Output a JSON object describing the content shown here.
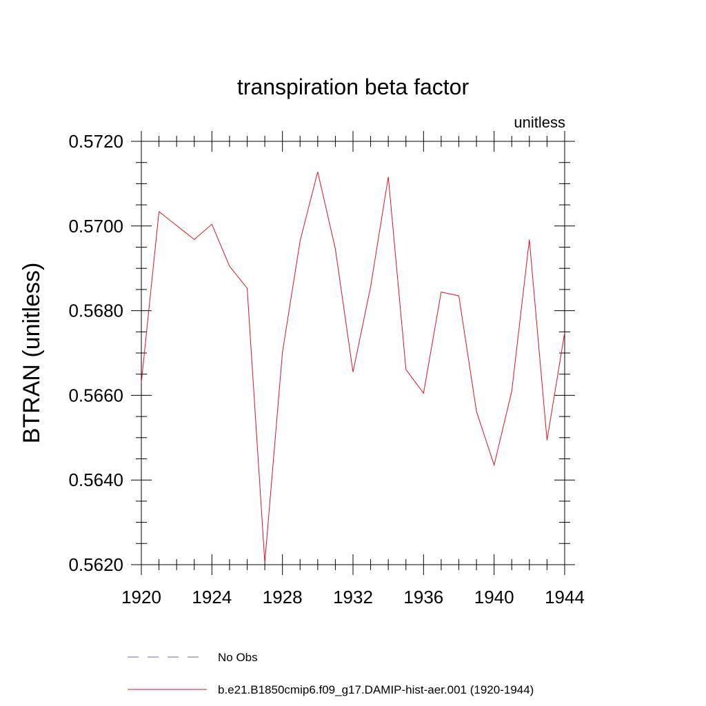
{
  "chart_data": {
    "type": "line",
    "title": "transpiration beta factor",
    "units_label": "unitless",
    "ylabel": "BTRAN  (unitless)",
    "xlabel": "",
    "xlim": [
      1920,
      1944
    ],
    "ylim": [
      0.562,
      0.572
    ],
    "x_ticks": [
      1920,
      1924,
      1928,
      1932,
      1936,
      1940,
      1944
    ],
    "x_tick_labels": [
      "1920",
      "1924",
      "1928",
      "1932",
      "1936",
      "1940",
      "1944"
    ],
    "y_ticks": [
      0.562,
      0.564,
      0.566,
      0.568,
      0.57,
      0.572
    ],
    "y_tick_labels": [
      "0.5620",
      "0.5640",
      "0.5660",
      "0.5680",
      "0.5700",
      "0.5720"
    ],
    "grid": false,
    "legend_position": "bottom",
    "series": [
      {
        "name": "b.e21.B1850cmip6.f09_g17.DAMIP-hist-aer.001 (1920-1944)",
        "color": "#e0141e",
        "style": "solid",
        "x": [
          1920,
          1921,
          1922,
          1923,
          1924,
          1925,
          1926,
          1927,
          1928,
          1929,
          1930,
          1931,
          1932,
          1933,
          1934,
          1935,
          1936,
          1937,
          1938,
          1939,
          1940,
          1941,
          1942,
          1943,
          1944
        ],
        "values": [
          0.5663,
          0.57034,
          0.57001,
          0.56968,
          0.57004,
          0.56905,
          0.56853,
          0.56205,
          0.56702,
          0.56965,
          0.57128,
          0.56946,
          0.56655,
          0.56857,
          0.57116,
          0.56661,
          0.56605,
          0.56844,
          0.56835,
          0.56562,
          0.56435,
          0.5661,
          0.56968,
          0.56494,
          0.56748
        ]
      }
    ],
    "legend": [
      {
        "label": "No Obs",
        "color": "#6a6aa8",
        "style": "dashed"
      },
      {
        "label": "b.e21.B1850cmip6.f09_g17.DAMIP-hist-aer.001 (1920-1944)",
        "color": "#e0141e",
        "style": "solid"
      }
    ]
  }
}
